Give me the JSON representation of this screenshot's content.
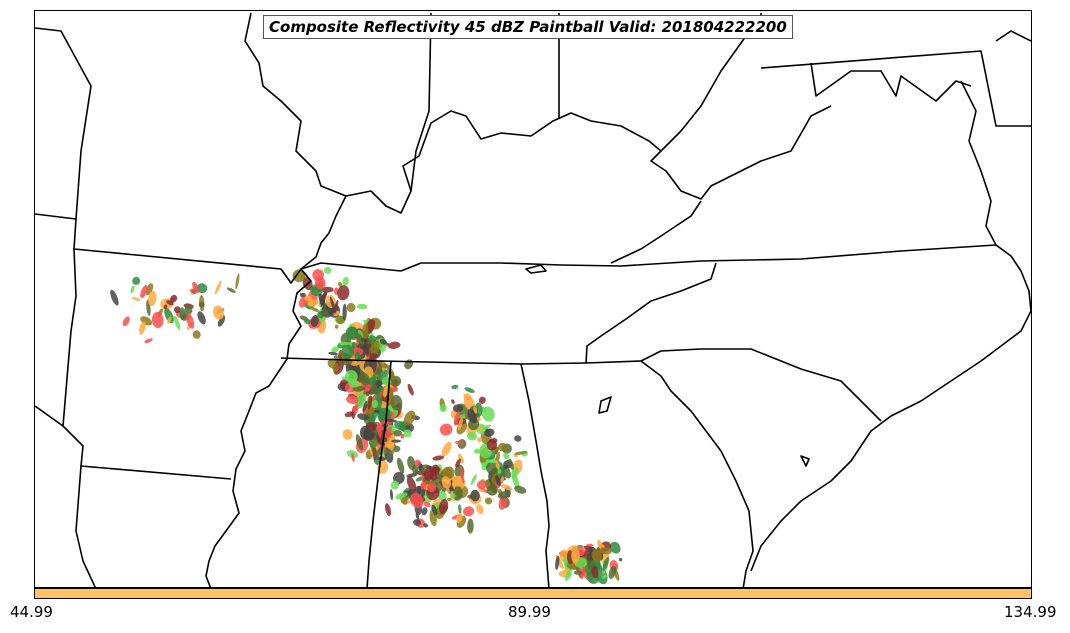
{
  "title": "Composite Reflectivity 45 dBZ Paintball Valid: 201804222200",
  "colorbar": {
    "color": "#ffc266",
    "ticks": [
      "44.99",
      "89.99",
      "134.99"
    ]
  },
  "paintball_colors": [
    "#ff4d4d",
    "#66dd55",
    "#ffa940",
    "#8b2b2b",
    "#556b2f",
    "#2f8b3e",
    "#8b7a1a",
    "#444444"
  ],
  "boundary_color": "#000000"
}
